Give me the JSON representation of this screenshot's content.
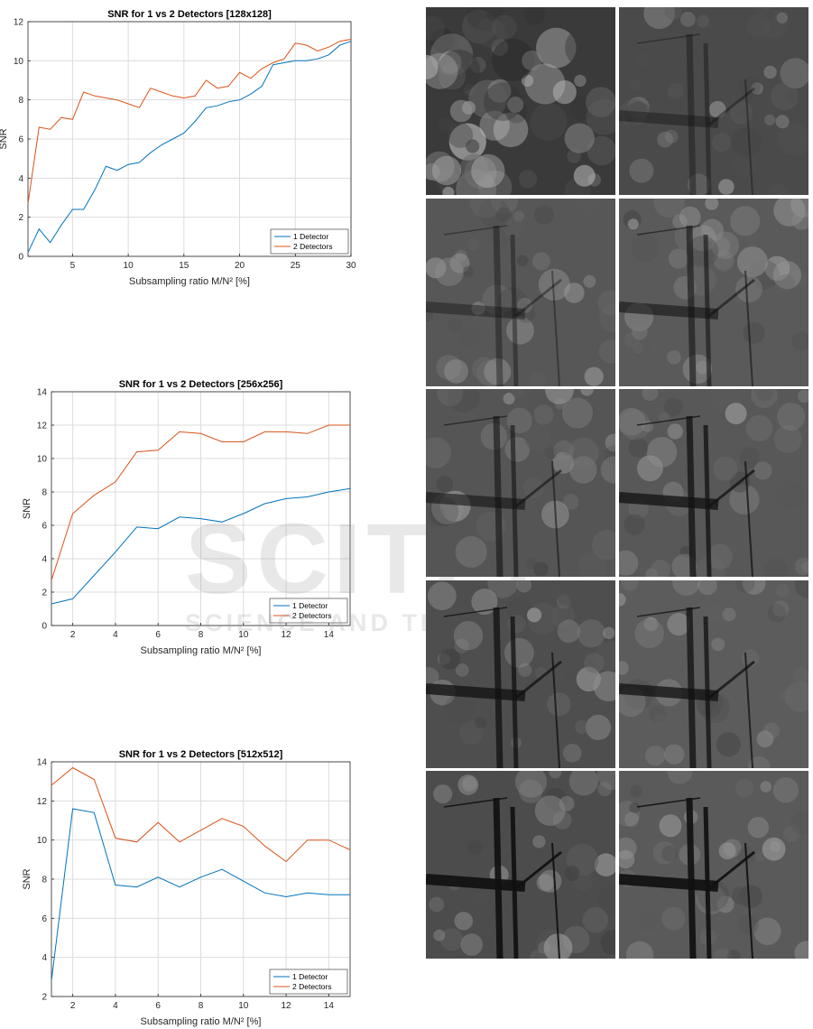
{
  "chart_data": [
    {
      "type": "line",
      "title": "SNR for 1 vs 2 Detectors [128x128]",
      "xlabel": "Subsampling ratio M/N² [%]",
      "ylabel": "SNR",
      "xlim": [
        1,
        30
      ],
      "ylim": [
        0,
        12
      ],
      "xticks": [
        5,
        10,
        15,
        20,
        25,
        30
      ],
      "yticks": [
        0,
        2,
        4,
        6,
        8,
        10,
        12
      ],
      "grid": true,
      "legend": "bottom-right",
      "x": [
        1,
        2,
        3,
        4,
        5,
        6,
        7,
        8,
        9,
        10,
        11,
        12,
        13,
        14,
        15,
        16,
        17,
        18,
        19,
        20,
        21,
        22,
        23,
        24,
        25,
        26,
        27,
        28,
        29,
        30
      ],
      "series": [
        {
          "name": "1 Detector",
          "color": "#0072BD",
          "values": [
            0.2,
            1.4,
            0.7,
            1.6,
            2.4,
            2.4,
            3.4,
            4.6,
            4.4,
            4.7,
            4.8,
            5.3,
            5.7,
            6.0,
            6.3,
            6.9,
            7.6,
            7.7,
            7.9,
            8.0,
            8.3,
            8.7,
            9.8,
            9.9,
            10.0,
            10.0,
            10.1,
            10.3,
            10.8,
            11.0
          ]
        },
        {
          "name": "2 Detectors",
          "color": "#D95319",
          "values": [
            2.7,
            6.6,
            6.5,
            7.1,
            7.0,
            8.4,
            8.2,
            8.1,
            8.0,
            7.8,
            7.6,
            8.6,
            8.4,
            8.2,
            8.1,
            8.2,
            9.0,
            8.6,
            8.7,
            9.4,
            9.1,
            9.6,
            9.9,
            10.1,
            10.9,
            10.8,
            10.5,
            10.7,
            11.0,
            11.1
          ]
        }
      ]
    },
    {
      "type": "line",
      "title": "SNR for 1 vs 2 Detectors [256x256]",
      "xlabel": "Subsampling ratio M/N² [%]",
      "ylabel": "SNR",
      "xlim": [
        1,
        15
      ],
      "ylim": [
        0,
        14
      ],
      "xticks": [
        2,
        4,
        6,
        8,
        10,
        12,
        14
      ],
      "yticks": [
        0,
        2,
        4,
        6,
        8,
        10,
        12,
        14
      ],
      "grid": true,
      "legend": "bottom-right",
      "x": [
        1,
        2,
        3,
        4,
        5,
        6,
        7,
        8,
        9,
        10,
        11,
        12,
        13,
        14,
        15
      ],
      "series": [
        {
          "name": "1 Detector",
          "color": "#0072BD",
          "values": [
            1.3,
            1.6,
            3.0,
            4.4,
            5.9,
            5.8,
            6.5,
            6.4,
            6.2,
            6.7,
            7.3,
            7.6,
            7.7,
            8.0,
            8.2
          ]
        },
        {
          "name": "2 Detectors",
          "color": "#D95319",
          "values": [
            2.7,
            6.7,
            7.8,
            8.6,
            10.4,
            10.5,
            11.6,
            11.5,
            11.0,
            11.0,
            11.6,
            11.6,
            11.5,
            12.0,
            12.0
          ]
        }
      ]
    },
    {
      "type": "line",
      "title": "SNR for 1 vs 2 Detectors [512x512]",
      "xlabel": "Subsampling ratio M/N² [%]",
      "ylabel": "SNR",
      "xlim": [
        1,
        15
      ],
      "ylim": [
        2,
        14
      ],
      "xticks": [
        2,
        4,
        6,
        8,
        10,
        12,
        14
      ],
      "yticks": [
        2,
        4,
        6,
        8,
        10,
        12,
        14
      ],
      "grid": true,
      "legend": "bottom-right",
      "x": [
        1,
        2,
        3,
        4,
        5,
        6,
        7,
        8,
        9,
        10,
        11,
        12,
        13,
        14,
        15
      ],
      "series": [
        {
          "name": "1 Detector",
          "color": "#0072BD",
          "values": [
            2.8,
            11.6,
            11.4,
            7.7,
            7.6,
            8.1,
            7.6,
            8.1,
            8.5,
            7.9,
            7.3,
            7.1,
            7.3,
            7.2,
            7.2
          ]
        },
        {
          "name": "2 Detectors",
          "color": "#D95319",
          "values": [
            12.8,
            13.7,
            13.1,
            10.1,
            9.9,
            10.9,
            9.9,
            10.5,
            11.1,
            10.7,
            9.7,
            8.9,
            10.0,
            10.0,
            9.5
          ]
        }
      ]
    }
  ],
  "watermark": {
    "main": "SCITEP",
    "sub": "SCIENCE AND TECHNO"
  }
}
